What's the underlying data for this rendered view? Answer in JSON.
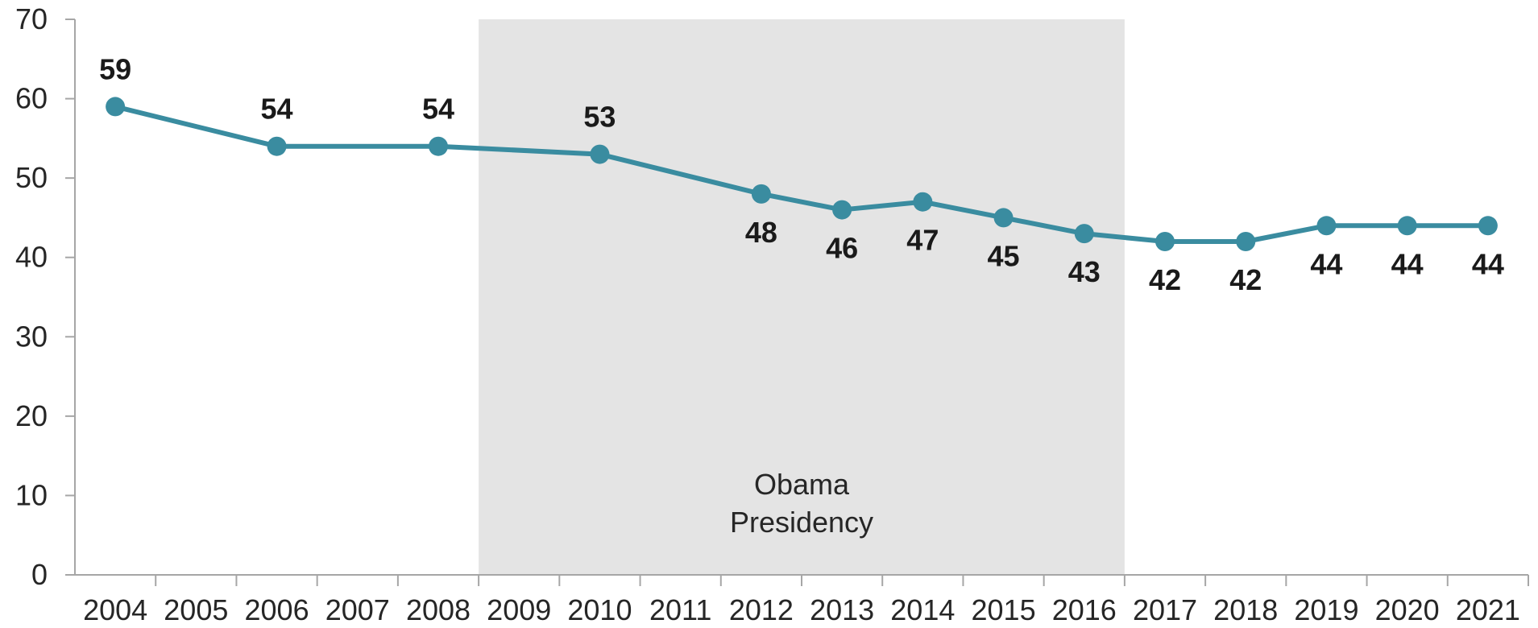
{
  "chart_data": {
    "type": "line",
    "x": [
      "2004",
      "2005",
      "2006",
      "2007",
      "2008",
      "2009",
      "2010",
      "2011",
      "2012",
      "2013",
      "2014",
      "2015",
      "2016",
      "2017",
      "2018",
      "2019",
      "2020",
      "2021"
    ],
    "series": [
      {
        "points": [
          {
            "x": "2004",
            "y": 59
          },
          {
            "x": "2006",
            "y": 54
          },
          {
            "x": "2008",
            "y": 54
          },
          {
            "x": "2010",
            "y": 53
          },
          {
            "x": "2012",
            "y": 48
          },
          {
            "x": "2013",
            "y": 46
          },
          {
            "x": "2014",
            "y": 47
          },
          {
            "x": "2015",
            "y": 45
          },
          {
            "x": "2016",
            "y": 43
          },
          {
            "x": "2017",
            "y": 42
          },
          {
            "x": "2018",
            "y": 42
          },
          {
            "x": "2019",
            "y": 44
          },
          {
            "x": "2020",
            "y": 44
          },
          {
            "x": "2021",
            "y": 44
          }
        ]
      }
    ],
    "data_label_position": [
      "above",
      "above",
      "above",
      "above",
      "below",
      "below",
      "below",
      "below",
      "below",
      "below",
      "below",
      "below",
      "below",
      "below"
    ],
    "ylim": [
      0,
      70
    ],
    "yticks": [
      0,
      10,
      20,
      30,
      40,
      50,
      60,
      70
    ],
    "grid": false,
    "shaded_region": {
      "from": "2009",
      "to": "2016",
      "label_lines": [
        "Obama",
        "Presidency"
      ]
    },
    "colors": {
      "line": "#3a8ca0",
      "shade": "#e4e4e4",
      "axis": "#a6a6a6",
      "tick_text": "#262626",
      "data_label_text": "#1a1a1a"
    }
  }
}
